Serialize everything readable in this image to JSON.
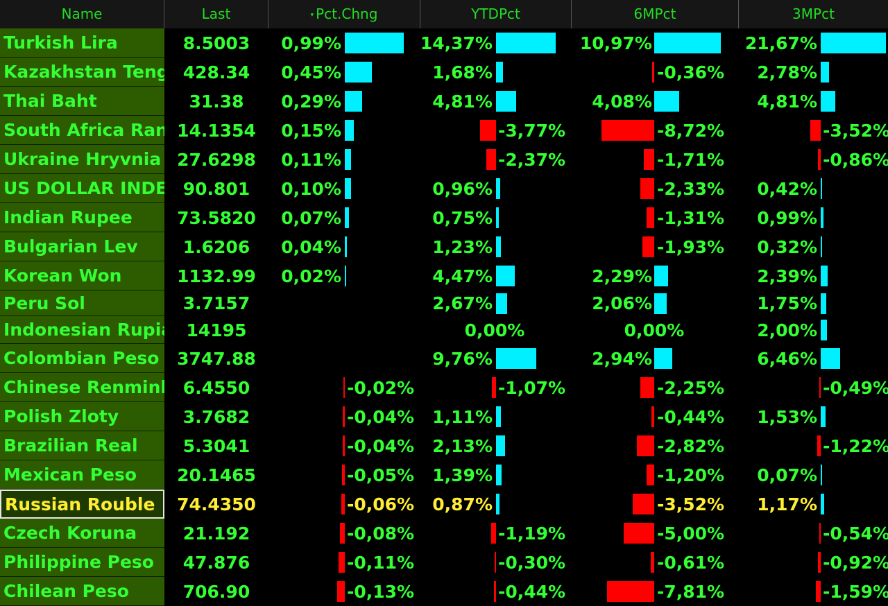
{
  "colors": {
    "positive_bar": "#00f0ff",
    "negative_bar": "#ff0000",
    "value_text": "#33ff33",
    "selected_text": "#ffee33",
    "name_bg": "#2c5b00"
  },
  "header": {
    "name": "Name",
    "last": "Last",
    "pct_chng": "Pct.Chng",
    "sort_indicator": "▾",
    "ytd": "YTDPct",
    "m6": "6MPct",
    "m3": "3MPct"
  },
  "rows": [
    {
      "name": "Turkish Lira",
      "last": "8.5003",
      "pct": "0,99%",
      "pct_v": 0.99,
      "ytd": "14,37%",
      "ytd_v": 14.37,
      "m6": "10,97%",
      "m6_v": 10.97,
      "m3": "21,67%",
      "m3_v": 21.67
    },
    {
      "name": "Kazakhstan Tenge",
      "last": "428.34",
      "pct": "0,45%",
      "pct_v": 0.45,
      "ytd": "1,68%",
      "ytd_v": 1.68,
      "m6": "-0,36%",
      "m6_v": -0.36,
      "m3": "2,78%",
      "m3_v": 2.78
    },
    {
      "name": "Thai Baht",
      "last": "31.38",
      "pct": "0,29%",
      "pct_v": 0.29,
      "ytd": "4,81%",
      "ytd_v": 4.81,
      "m6": "4,08%",
      "m6_v": 4.08,
      "m3": "4,81%",
      "m3_v": 4.81
    },
    {
      "name": "South Africa Rand",
      "last": "14.1354",
      "pct": "0,15%",
      "pct_v": 0.15,
      "ytd": "-3,77%",
      "ytd_v": -3.77,
      "m6": "-8,72%",
      "m6_v": -8.72,
      "m3": "-3,52%",
      "m3_v": -3.52
    },
    {
      "name": "Ukraine Hryvnia",
      "last": "27.6298",
      "pct": "0,11%",
      "pct_v": 0.11,
      "ytd": "-2,37%",
      "ytd_v": -2.37,
      "m6": "-1,71%",
      "m6_v": -1.71,
      "m3": "-0,86%",
      "m3_v": -0.86
    },
    {
      "name": "US DOLLAR INDE/c",
      "last": "90.801",
      "pct": "0,10%",
      "pct_v": 0.1,
      "ytd": "0,96%",
      "ytd_v": 0.96,
      "m6": "-2,33%",
      "m6_v": -2.33,
      "m3": "0,42%",
      "m3_v": 0.42
    },
    {
      "name": "Indian Rupee",
      "last": "73.5820",
      "pct": "0,07%",
      "pct_v": 0.07,
      "ytd": "0,75%",
      "ytd_v": 0.75,
      "m6": "-1,31%",
      "m6_v": -1.31,
      "m3": "0,99%",
      "m3_v": 0.99
    },
    {
      "name": "Bulgarian Lev",
      "last": "1.6206",
      "pct": "0,04%",
      "pct_v": 0.04,
      "ytd": "1,23%",
      "ytd_v": 1.23,
      "m6": "-1,93%",
      "m6_v": -1.93,
      "m3": "0,32%",
      "m3_v": 0.32
    },
    {
      "name": "Korean Won",
      "last": "1132.99",
      "pct": "0,02%",
      "pct_v": 0.02,
      "ytd": "4,47%",
      "ytd_v": 4.47,
      "m6": "2,29%",
      "m6_v": 2.29,
      "m3": "2,39%",
      "m3_v": 2.39
    },
    {
      "name": "Peru Sol",
      "last": "3.7157",
      "pct": "",
      "pct_v": 0,
      "ytd": "2,67%",
      "ytd_v": 2.67,
      "m6": "2,06%",
      "m6_v": 2.06,
      "m3": "1,75%",
      "m3_v": 1.75
    },
    {
      "name": "Indonesian Rupiah",
      "last": "14195",
      "pct": "",
      "pct_v": 0,
      "ytd": "0,00%",
      "ytd_v": 0,
      "m6": "0,00%",
      "m6_v": 0,
      "m3": "2,00%",
      "m3_v": 2.0
    },
    {
      "name": "Colombian Peso",
      "last": "3747.88",
      "pct": "",
      "pct_v": 0,
      "ytd": "9,76%",
      "ytd_v": 9.76,
      "m6": "2,94%",
      "m6_v": 2.94,
      "m3": "6,46%",
      "m3_v": 6.46
    },
    {
      "name": "Chinese Renminbi",
      "last": "6.4550",
      "pct": "-0,02%",
      "pct_v": -0.02,
      "ytd": "-1,07%",
      "ytd_v": -1.07,
      "m6": "-2,25%",
      "m6_v": -2.25,
      "m3": "-0,49%",
      "m3_v": -0.49
    },
    {
      "name": "Polish Zloty",
      "last": "3.7682",
      "pct": "-0,04%",
      "pct_v": -0.04,
      "ytd": "1,11%",
      "ytd_v": 1.11,
      "m6": "-0,44%",
      "m6_v": -0.44,
      "m3": "1,53%",
      "m3_v": 1.53
    },
    {
      "name": "Brazilian Real",
      "last": "5.3041",
      "pct": "-0,04%",
      "pct_v": -0.04,
      "ytd": "2,13%",
      "ytd_v": 2.13,
      "m6": "-2,82%",
      "m6_v": -2.82,
      "m3": "-1,22%",
      "m3_v": -1.22
    },
    {
      "name": "Mexican Peso",
      "last": "20.1465",
      "pct": "-0,05%",
      "pct_v": -0.05,
      "ytd": "1,39%",
      "ytd_v": 1.39,
      "m6": "-1,20%",
      "m6_v": -1.2,
      "m3": "0,07%",
      "m3_v": 0.07
    },
    {
      "name": "Russian Rouble",
      "last": "74.4350",
      "pct": "-0,06%",
      "pct_v": -0.06,
      "ytd": "0,87%",
      "ytd_v": 0.87,
      "m6": "-3,52%",
      "m6_v": -3.52,
      "m3": "1,17%",
      "m3_v": 1.17,
      "selected": true
    },
    {
      "name": "Czech Koruna",
      "last": "21.192",
      "pct": "-0,08%",
      "pct_v": -0.08,
      "ytd": "-1,19%",
      "ytd_v": -1.19,
      "m6": "-5,00%",
      "m6_v": -5.0,
      "m3": "-0,54%",
      "m3_v": -0.54
    },
    {
      "name": "Philippine Peso",
      "last": "47.876",
      "pct": "-0,11%",
      "pct_v": -0.11,
      "ytd": "-0,30%",
      "ytd_v": -0.3,
      "m6": "-0,61%",
      "m6_v": -0.61,
      "m3": "-0,92%",
      "m3_v": -0.92
    },
    {
      "name": "Chilean Peso",
      "last": "706.90",
      "pct": "-0,13%",
      "pct_v": -0.13,
      "ytd": "-0,44%",
      "ytd_v": -0.44,
      "m6": "-7,81%",
      "m6_v": -7.81,
      "m3": "-1,59%",
      "m3_v": -1.59
    }
  ]
}
